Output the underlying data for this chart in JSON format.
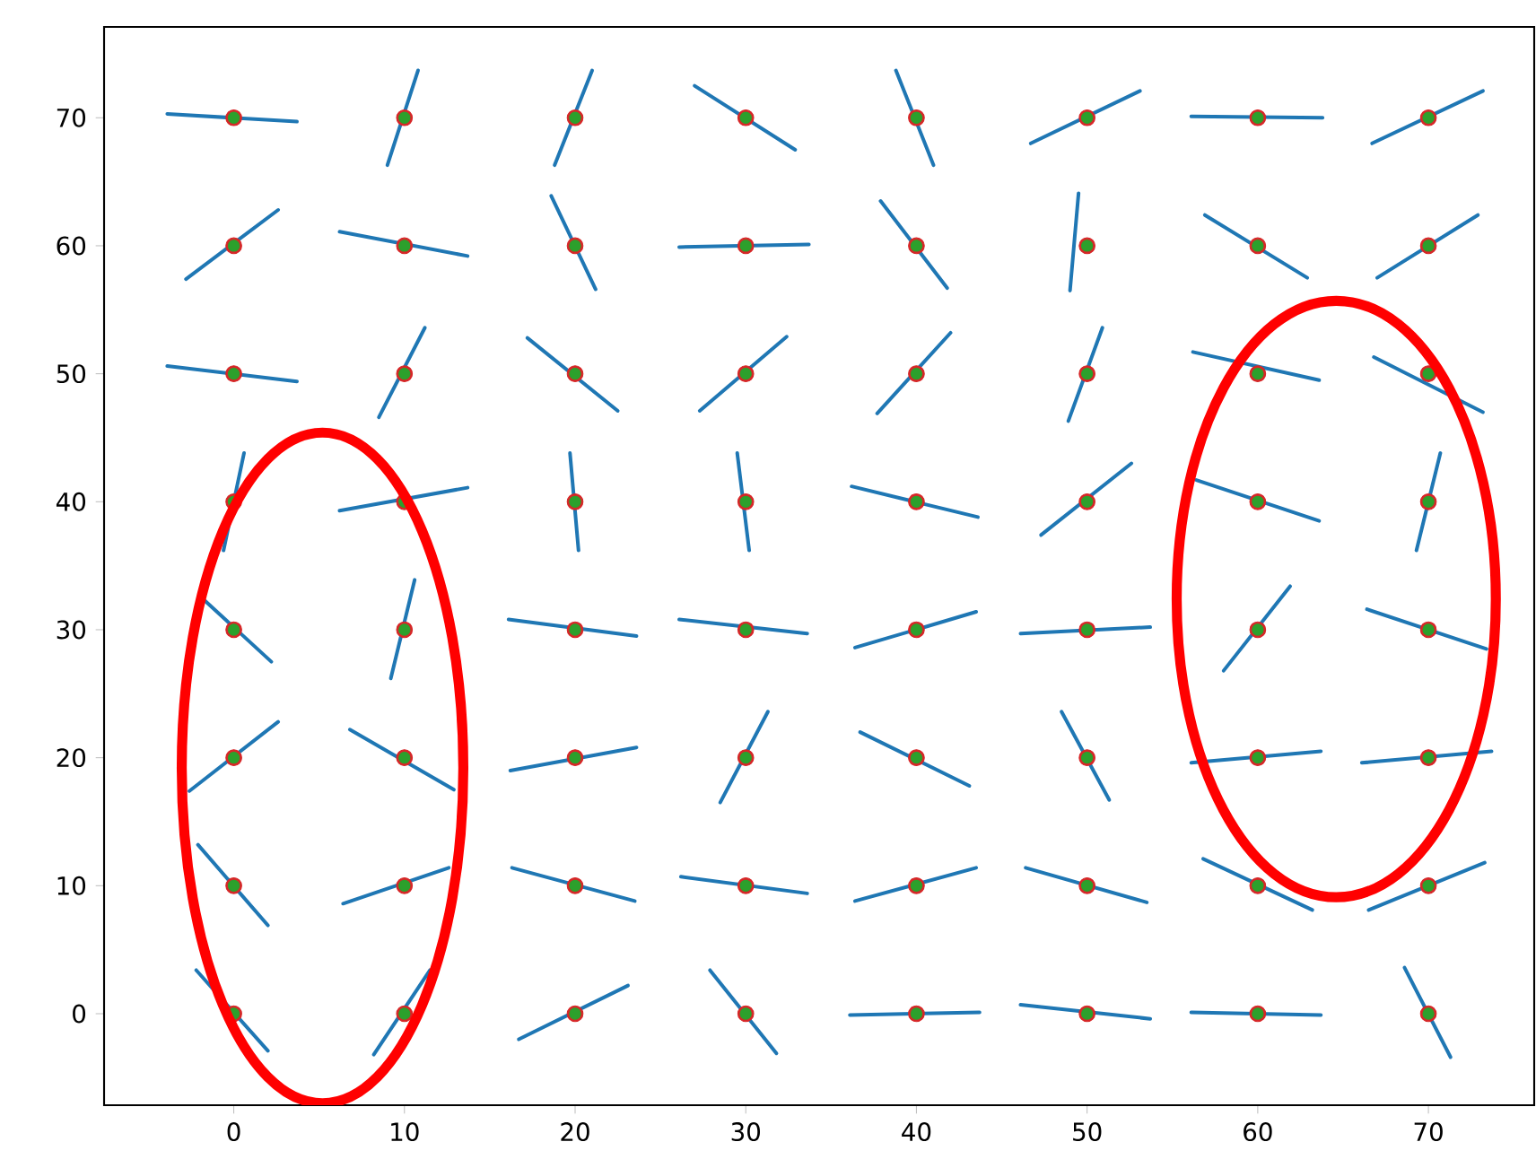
{
  "chart_data": {
    "type": "scatter",
    "xlim": [
      -7.6,
      76.2
    ],
    "ylim": [
      -7.15,
      77.1
    ],
    "xticks": [
      0,
      10,
      20,
      30,
      40,
      50,
      60,
      70
    ],
    "yticks": [
      0,
      10,
      20,
      30,
      40,
      50,
      60,
      70
    ],
    "series": [
      {
        "type": "line",
        "color": "#1f77b4",
        "marker": "none",
        "x": [
          -3.9,
          3.7
        ],
        "values": [
          70.3,
          69.7
        ]
      },
      {
        "type": "line",
        "color": "#1f77b4",
        "marker": "none",
        "x": [
          9.0,
          10.8
        ],
        "values": [
          66.3,
          73.7
        ]
      },
      {
        "type": "line",
        "color": "#1f77b4",
        "marker": "none",
        "x": [
          18.8,
          21.0
        ],
        "values": [
          66.3,
          73.7
        ]
      },
      {
        "type": "line",
        "color": "#1f77b4",
        "marker": "none",
        "x": [
          27.0,
          32.9
        ],
        "values": [
          72.5,
          67.5
        ]
      },
      {
        "type": "line",
        "color": "#1f77b4",
        "marker": "none",
        "x": [
          38.8,
          41.0
        ],
        "values": [
          73.7,
          66.3
        ]
      },
      {
        "type": "line",
        "color": "#1f77b4",
        "marker": "none",
        "x": [
          46.7,
          53.1
        ],
        "values": [
          68.0,
          72.1
        ]
      },
      {
        "type": "line",
        "color": "#1f77b4",
        "marker": "none",
        "x": [
          56.1,
          63.8
        ],
        "values": [
          70.1,
          70.0
        ]
      },
      {
        "type": "line",
        "color": "#1f77b4",
        "marker": "none",
        "x": [
          66.7,
          73.2
        ],
        "values": [
          68.0,
          72.1
        ]
      },
      {
        "type": "line",
        "color": "#1f77b4",
        "marker": "none",
        "x": [
          -2.8,
          2.6
        ],
        "values": [
          57.4,
          62.8
        ]
      },
      {
        "type": "line",
        "color": "#1f77b4",
        "marker": "none",
        "x": [
          6.2,
          13.7
        ],
        "values": [
          61.1,
          59.2
        ]
      },
      {
        "type": "line",
        "color": "#1f77b4",
        "marker": "none",
        "x": [
          18.6,
          21.2
        ],
        "values": [
          63.9,
          56.6
        ]
      },
      {
        "type": "line",
        "color": "#1f77b4",
        "marker": "none",
        "x": [
          26.1,
          33.7
        ],
        "values": [
          59.9,
          60.1
        ]
      },
      {
        "type": "line",
        "color": "#1f77b4",
        "marker": "none",
        "x": [
          37.9,
          41.8
        ],
        "values": [
          63.5,
          56.7
        ]
      },
      {
        "type": "line",
        "color": "#1f77b4",
        "marker": "none",
        "x": [
          49.5,
          49.0
        ],
        "values": [
          64.1,
          56.5
        ]
      },
      {
        "type": "line",
        "color": "#1f77b4",
        "marker": "none",
        "x": [
          56.9,
          62.9
        ],
        "values": [
          62.4,
          57.5
        ]
      },
      {
        "type": "line",
        "color": "#1f77b4",
        "marker": "none",
        "x": [
          67.0,
          72.9
        ],
        "values": [
          57.5,
          62.4
        ]
      },
      {
        "type": "line",
        "color": "#1f77b4",
        "marker": "none",
        "x": [
          -3.9,
          3.7
        ],
        "values": [
          50.6,
          49.4
        ]
      },
      {
        "type": "line",
        "color": "#1f77b4",
        "marker": "none",
        "x": [
          8.5,
          11.2
        ],
        "values": [
          46.6,
          53.6
        ]
      },
      {
        "type": "line",
        "color": "#1f77b4",
        "marker": "none",
        "x": [
          17.2,
          22.5
        ],
        "values": [
          52.8,
          47.1
        ]
      },
      {
        "type": "line",
        "color": "#1f77b4",
        "marker": "none",
        "x": [
          27.3,
          32.4
        ],
        "values": [
          47.1,
          52.9
        ]
      },
      {
        "type": "line",
        "color": "#1f77b4",
        "marker": "none",
        "x": [
          37.7,
          42.0
        ],
        "values": [
          46.9,
          53.2
        ]
      },
      {
        "type": "line",
        "color": "#1f77b4",
        "marker": "none",
        "x": [
          48.9,
          50.9
        ],
        "values": [
          46.3,
          53.6
        ]
      },
      {
        "type": "line",
        "color": "#1f77b4",
        "marker": "none",
        "x": [
          56.2,
          63.6
        ],
        "values": [
          51.7,
          49.5
        ]
      },
      {
        "type": "line",
        "color": "#1f77b4",
        "marker": "none",
        "x": [
          66.8,
          73.2
        ],
        "values": [
          51.3,
          47.0
        ]
      },
      {
        "type": "line",
        "color": "#1f77b4",
        "marker": "none",
        "x": [
          -0.6,
          0.6
        ],
        "values": [
          36.2,
          43.8
        ]
      },
      {
        "type": "line",
        "color": "#1f77b4",
        "marker": "none",
        "x": [
          6.2,
          13.7
        ],
        "values": [
          39.3,
          41.1
        ]
      },
      {
        "type": "line",
        "color": "#1f77b4",
        "marker": "none",
        "x": [
          19.7,
          20.2
        ],
        "values": [
          43.8,
          36.2
        ]
      },
      {
        "type": "line",
        "color": "#1f77b4",
        "marker": "none",
        "x": [
          29.5,
          30.2
        ],
        "values": [
          43.8,
          36.2
        ]
      },
      {
        "type": "line",
        "color": "#1f77b4",
        "marker": "none",
        "x": [
          36.2,
          43.6
        ],
        "values": [
          41.2,
          38.8
        ]
      },
      {
        "type": "line",
        "color": "#1f77b4",
        "marker": "none",
        "x": [
          47.3,
          52.6
        ],
        "values": [
          37.4,
          43.0
        ]
      },
      {
        "type": "line",
        "color": "#1f77b4",
        "marker": "none",
        "x": [
          56.4,
          63.6
        ],
        "values": [
          41.7,
          38.5
        ]
      },
      {
        "type": "line",
        "color": "#1f77b4",
        "marker": "none",
        "x": [
          69.3,
          70.7
        ],
        "values": [
          36.2,
          43.8
        ]
      },
      {
        "type": "line",
        "color": "#1f77b4",
        "marker": "none",
        "x": [
          -1.8,
          2.2
        ],
        "values": [
          32.4,
          27.5
        ]
      },
      {
        "type": "line",
        "color": "#1f77b4",
        "marker": "none",
        "x": [
          10.6,
          9.2
        ],
        "values": [
          33.9,
          26.2
        ]
      },
      {
        "type": "line",
        "color": "#1f77b4",
        "marker": "none",
        "x": [
          16.1,
          23.6
        ],
        "values": [
          30.8,
          29.5
        ]
      },
      {
        "type": "line",
        "color": "#1f77b4",
        "marker": "none",
        "x": [
          26.1,
          33.6
        ],
        "values": [
          30.8,
          29.7
        ]
      },
      {
        "type": "line",
        "color": "#1f77b4",
        "marker": "none",
        "x": [
          36.4,
          43.5
        ],
        "values": [
          28.6,
          31.4
        ]
      },
      {
        "type": "line",
        "color": "#1f77b4",
        "marker": "none",
        "x": [
          46.1,
          53.7
        ],
        "values": [
          29.7,
          30.2
        ]
      },
      {
        "type": "line",
        "color": "#1f77b4",
        "marker": "none",
        "x": [
          58.0,
          61.9
        ],
        "values": [
          26.8,
          33.4
        ]
      },
      {
        "type": "line",
        "color": "#1f77b4",
        "marker": "none",
        "x": [
          66.4,
          73.4
        ],
        "values": [
          31.6,
          28.5
        ]
      },
      {
        "type": "line",
        "color": "#1f77b4",
        "marker": "none",
        "x": [
          -2.6,
          2.6
        ],
        "values": [
          17.4,
          22.8
        ]
      },
      {
        "type": "line",
        "color": "#1f77b4",
        "marker": "none",
        "x": [
          6.8,
          12.9
        ],
        "values": [
          22.2,
          17.5
        ]
      },
      {
        "type": "line",
        "color": "#1f77b4",
        "marker": "none",
        "x": [
          16.2,
          23.6
        ],
        "values": [
          19.0,
          20.8
        ]
      },
      {
        "type": "line",
        "color": "#1f77b4",
        "marker": "none",
        "x": [
          28.5,
          31.3
        ],
        "values": [
          16.5,
          23.6
        ]
      },
      {
        "type": "line",
        "color": "#1f77b4",
        "marker": "none",
        "x": [
          36.7,
          43.1
        ],
        "values": [
          22.0,
          17.8
        ]
      },
      {
        "type": "line",
        "color": "#1f77b4",
        "marker": "none",
        "x": [
          48.5,
          51.3
        ],
        "values": [
          23.6,
          16.7
        ]
      },
      {
        "type": "line",
        "color": "#1f77b4",
        "marker": "none",
        "x": [
          56.1,
          63.7
        ],
        "values": [
          19.6,
          20.5
        ]
      },
      {
        "type": "line",
        "color": "#1f77b4",
        "marker": "none",
        "x": [
          66.1,
          73.7
        ],
        "values": [
          19.6,
          20.5
        ]
      },
      {
        "type": "line",
        "color": "#1f77b4",
        "marker": "none",
        "x": [
          -2.1,
          2.0
        ],
        "values": [
          13.2,
          6.9
        ]
      },
      {
        "type": "line",
        "color": "#1f77b4",
        "marker": "none",
        "x": [
          6.4,
          12.6
        ],
        "values": [
          8.6,
          11.4
        ]
      },
      {
        "type": "line",
        "color": "#1f77b4",
        "marker": "none",
        "x": [
          16.3,
          23.5
        ],
        "values": [
          11.4,
          8.8
        ]
      },
      {
        "type": "line",
        "color": "#1f77b4",
        "marker": "none",
        "x": [
          26.2,
          33.6
        ],
        "values": [
          10.7,
          9.4
        ]
      },
      {
        "type": "line",
        "color": "#1f77b4",
        "marker": "none",
        "x": [
          36.4,
          43.5
        ],
        "values": [
          8.8,
          11.4
        ]
      },
      {
        "type": "line",
        "color": "#1f77b4",
        "marker": "none",
        "x": [
          46.4,
          53.5
        ],
        "values": [
          11.4,
          8.7
        ]
      },
      {
        "type": "line",
        "color": "#1f77b4",
        "marker": "none",
        "x": [
          56.8,
          63.2
        ],
        "values": [
          12.1,
          8.1
        ]
      },
      {
        "type": "line",
        "color": "#1f77b4",
        "marker": "none",
        "x": [
          66.5,
          73.3
        ],
        "values": [
          8.1,
          11.8
        ]
      },
      {
        "type": "line",
        "color": "#1f77b4",
        "marker": "none",
        "x": [
          -2.2,
          2.0
        ],
        "values": [
          3.4,
          -2.9
        ]
      },
      {
        "type": "line",
        "color": "#1f77b4",
        "marker": "none",
        "x": [
          8.2,
          11.5
        ],
        "values": [
          -3.2,
          3.4
        ]
      },
      {
        "type": "line",
        "color": "#1f77b4",
        "marker": "none",
        "x": [
          16.7,
          23.1
        ],
        "values": [
          -2.0,
          2.2
        ]
      },
      {
        "type": "line",
        "color": "#1f77b4",
        "marker": "none",
        "x": [
          27.9,
          31.8
        ],
        "values": [
          3.4,
          -3.1
        ]
      },
      {
        "type": "line",
        "color": "#1f77b4",
        "marker": "none",
        "x": [
          36.1,
          43.7
        ],
        "values": [
          -0.1,
          0.1
        ]
      },
      {
        "type": "line",
        "color": "#1f77b4",
        "marker": "none",
        "x": [
          46.1,
          53.7
        ],
        "values": [
          0.7,
          -0.4
        ]
      },
      {
        "type": "line",
        "color": "#1f77b4",
        "marker": "none",
        "x": [
          56.1,
          63.7
        ],
        "values": [
          0.1,
          -0.1
        ]
      },
      {
        "type": "line",
        "color": "#1f77b4",
        "marker": "none",
        "x": [
          68.6,
          71.3
        ],
        "values": [
          3.6,
          -3.4
        ]
      },
      {
        "color": "#d62728",
        "marker": "circle",
        "x": [
          0,
          10,
          20,
          30,
          40,
          50,
          60,
          70,
          0,
          10,
          20,
          30,
          40,
          50,
          60,
          70,
          0,
          10,
          20,
          30,
          40,
          50,
          60,
          70,
          0,
          10,
          20,
          30,
          40,
          50,
          60,
          70,
          0,
          10,
          20,
          30,
          40,
          50,
          60,
          70,
          0,
          10,
          20,
          30,
          40,
          50,
          60,
          70,
          0,
          10,
          20,
          30,
          40,
          50,
          60,
          70,
          0,
          10,
          20,
          30,
          40,
          50,
          60,
          70
        ],
        "values": [
          70,
          70,
          70,
          70,
          70,
          70,
          70,
          70,
          60,
          60,
          60,
          60,
          60,
          60,
          60,
          60,
          50,
          50,
          50,
          50,
          50,
          50,
          50,
          50,
          40,
          40,
          40,
          40,
          40,
          40,
          40,
          40,
          30,
          30,
          30,
          30,
          30,
          30,
          30,
          30,
          20,
          20,
          20,
          20,
          20,
          20,
          20,
          20,
          10,
          10,
          10,
          10,
          10,
          10,
          10,
          10,
          0,
          0,
          0,
          0,
          0,
          0,
          0,
          0
        ]
      },
      {
        "color": "#2ca02c",
        "marker": "circle",
        "x": [
          0,
          10,
          20,
          30,
          40,
          50,
          60,
          70,
          0,
          10,
          20,
          30,
          40,
          50,
          60,
          70,
          0,
          10,
          20,
          30,
          40,
          50,
          60,
          70,
          0,
          10,
          20,
          30,
          40,
          50,
          60,
          70,
          0,
          10,
          20,
          30,
          40,
          50,
          60,
          70,
          0,
          10,
          20,
          30,
          40,
          50,
          60,
          70,
          0,
          10,
          20,
          30,
          40,
          50,
          60,
          70,
          0,
          10,
          20,
          30,
          40,
          50,
          60,
          70
        ],
        "values": [
          70,
          70,
          70,
          70,
          70,
          70,
          70,
          70,
          60,
          60,
          60,
          60,
          60,
          60,
          60,
          60,
          50,
          50,
          50,
          50,
          50,
          50,
          50,
          50,
          40,
          40,
          40,
          40,
          40,
          40,
          40,
          40,
          30,
          30,
          30,
          30,
          30,
          30,
          30,
          30,
          20,
          20,
          20,
          20,
          20,
          20,
          20,
          20,
          10,
          10,
          10,
          10,
          10,
          10,
          10,
          10,
          0,
          0,
          0,
          0,
          0,
          0,
          0,
          0
        ]
      }
    ]
  }
}
